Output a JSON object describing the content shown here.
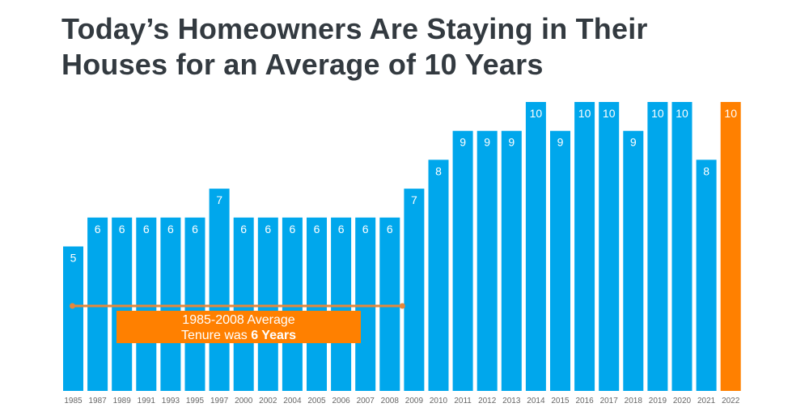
{
  "title": {
    "line1": "Today’s Homeowners Are Staying in Their",
    "line2": "Houses for an Average of 10 Years"
  },
  "annotation": {
    "line1": "1985-2008 Average",
    "line2_prefix": "Tenure was ",
    "line2_bold": "6 Years",
    "average_value": 6,
    "span_start": "1985",
    "span_end": "2008"
  },
  "colors": {
    "bar": "#00a7ec",
    "highlight": "#ff8000",
    "average_line": "#e6873a"
  },
  "chart_data": {
    "type": "bar",
    "categories": [
      "1985",
      "1987",
      "1989",
      "1991",
      "1993",
      "1995",
      "1997",
      "2000",
      "2002",
      "2004",
      "2005",
      "2006",
      "2007",
      "2008",
      "2009",
      "2010",
      "2011",
      "2012",
      "2013",
      "2014",
      "2015",
      "2016",
      "2017",
      "2018",
      "2019",
      "2020",
      "2021",
      "2022"
    ],
    "values": [
      5,
      6,
      6,
      6,
      6,
      6,
      7,
      6,
      6,
      6,
      6,
      6,
      6,
      6,
      7,
      8,
      9,
      9,
      9,
      10,
      9,
      10,
      10,
      9,
      10,
      10,
      8,
      10
    ],
    "highlight_category": "2022",
    "ylim": [
      0,
      10
    ],
    "grid": false,
    "legend": "none",
    "xlabel": "",
    "ylabel": ""
  }
}
